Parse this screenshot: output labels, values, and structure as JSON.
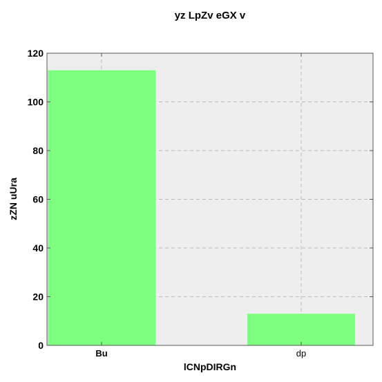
{
  "chart_data": {
    "type": "bar",
    "title": "yz LpZv eGX v",
    "xlabel": "lCNpDIRGn",
    "ylabel": "zZN uUra",
    "categories": [
      "Bu",
      "dp"
    ],
    "values": [
      113,
      13
    ],
    "ylim": [
      0,
      120
    ],
    "yticks": [
      0,
      20,
      40,
      60,
      80,
      100,
      120
    ],
    "grid": true,
    "bar_color": "#7fff7f",
    "plot_background": "#eeeeee"
  }
}
